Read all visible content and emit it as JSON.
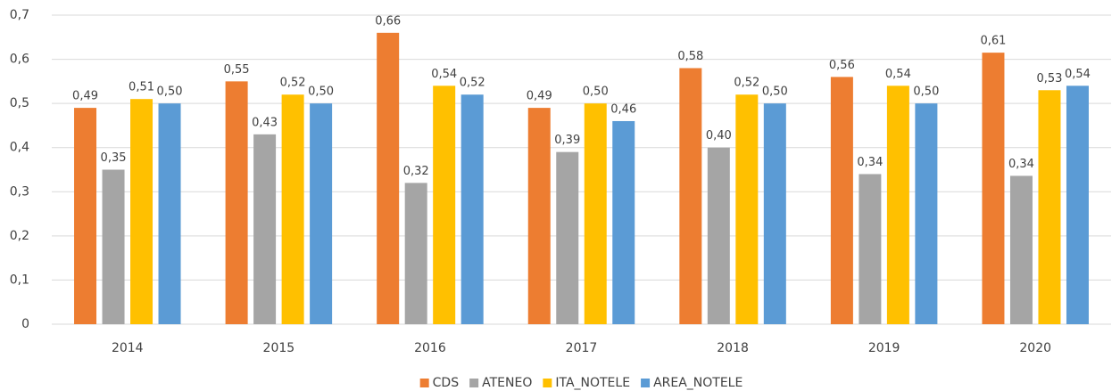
{
  "chart_data": {
    "type": "bar",
    "categories": [
      "2014",
      "2015",
      "2016",
      "2017",
      "2018",
      "2019",
      "2020"
    ],
    "series": [
      {
        "name": "CDS",
        "color": "#ed7d31",
        "values": [
          0.49,
          0.55,
          0.66,
          0.49,
          0.58,
          0.56,
          0.615
        ],
        "value_labels": [
          "0,49",
          "0,55",
          "0,66",
          "0,49",
          "0,58",
          "0,56",
          "0,61"
        ]
      },
      {
        "name": "ATENEO",
        "color": "#a5a5a5",
        "values": [
          0.35,
          0.43,
          0.32,
          0.39,
          0.4,
          0.34,
          0.336
        ],
        "value_labels": [
          "0,35",
          "0,43",
          "0,32",
          "0,39",
          "0,40",
          "0,34",
          "0,34"
        ]
      },
      {
        "name": "ITA_NOTELE",
        "color": "#ffc000",
        "values": [
          0.51,
          0.52,
          0.54,
          0.5,
          0.52,
          0.54,
          0.53
        ],
        "value_labels": [
          "0,51",
          "0,52",
          "0,54",
          "0,50",
          "0,52",
          "0,54",
          "0,53"
        ]
      },
      {
        "name": "AREA_NOTELE",
        "color": "#5b9bd5",
        "values": [
          0.5,
          0.5,
          0.52,
          0.46,
          0.5,
          0.5,
          0.54
        ],
        "value_labels": [
          "0,50",
          "0,50",
          "0,52",
          "0,46",
          "0,50",
          "0,50",
          "0,54"
        ]
      }
    ],
    "ylim": [
      0,
      0.7
    ],
    "yticks": [
      0,
      {
        "value": 0.1,
        "label": "0,1"
      },
      {
        "value": 0.2,
        "label": "0,2"
      },
      {
        "value": 0.3,
        "label": "0,3"
      },
      {
        "value": 0.4,
        "label": "0,4"
      },
      {
        "value": 0.5,
        "label": "0,5"
      },
      {
        "value": 0.6,
        "label": "0,6"
      },
      {
        "value": 0.7,
        "label": "0,7"
      }
    ],
    "grid": true,
    "legend": "bottom"
  }
}
